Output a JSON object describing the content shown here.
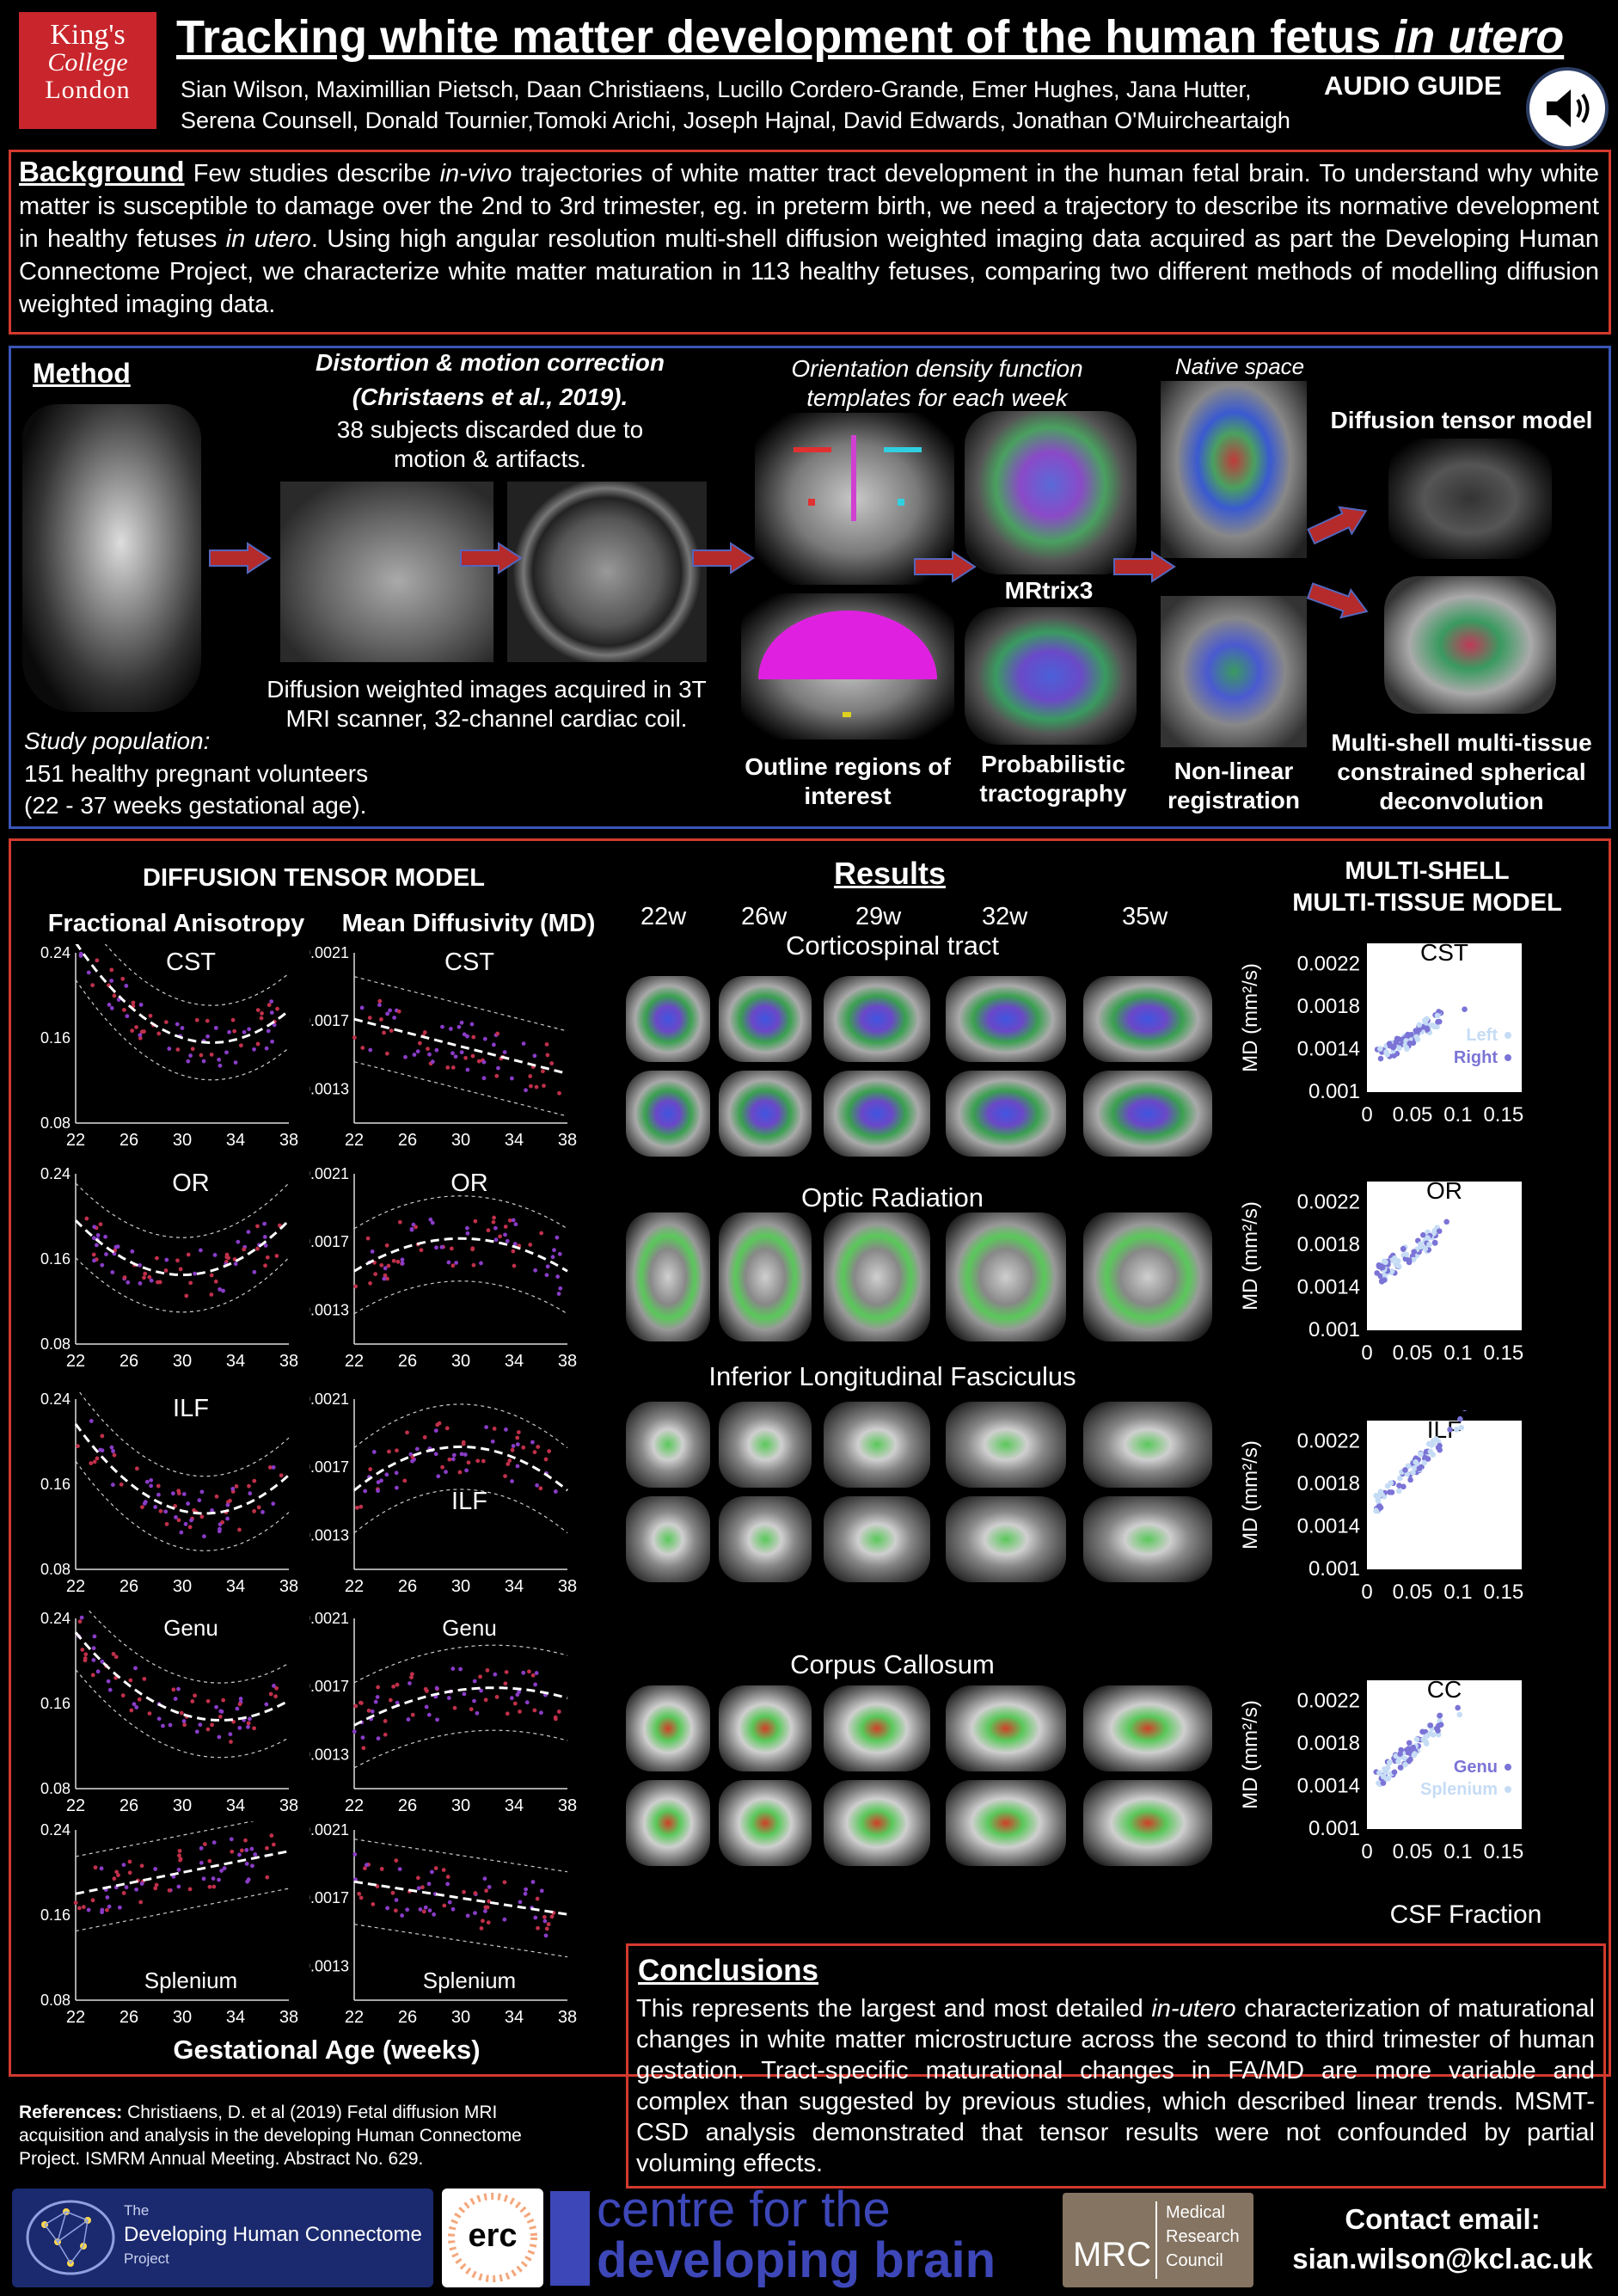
{
  "header": {
    "logo": {
      "line1": "King's",
      "line2": "College",
      "line3": "London"
    },
    "title_main": "Tracking white matter development of the human fetus ",
    "title_italic": "in utero",
    "authors_line1": "Sian Wilson, Maximillian Pietsch, Daan Christiaens, Lucillo Cordero-Grande, Emer Hughes, Jana Hutter,",
    "authors_line2": "Serena Counsell, Donald Tournier,Tomoki Arichi, Joseph Hajnal, David Edwards, Jonathan O'Muircheartaigh",
    "audio_guide": "AUDIO GUIDE"
  },
  "background": {
    "heading": "Background",
    "t1": " Few studies describe ",
    "t2": "in-vivo",
    "t3": " trajectories of white matter tract development in the human fetal brain. To understand why white matter is susceptible to damage over the 2nd to 3rd trimester, eg. in preterm birth, we need a trajectory to describe its normative development in healthy fetuses ",
    "t4": "in utero",
    "t5": ". Using high angular resolution multi-shell diffusion weighted imaging data acquired as part the Developing Human Connectome Project, we characterize white matter maturation in 113 healthy fetuses, comparing two different methods of modelling diffusion weighted imaging data."
  },
  "method": {
    "heading": "Method",
    "distortion_title": "Distortion & motion correction",
    "distortion_ref": "(Christaens et al., 2019).",
    "discarded": "38 subjects discarded due to motion & artifacts.",
    "dwi": "Diffusion weighted images acquired in 3T MRI scanner, 32-channel cardiac coil.",
    "study_pop_label": "Study population:",
    "study_pop_1": "151 healthy pregnant volunteers",
    "study_pop_2": "(22 - 37 weeks gestational age).",
    "odf": "Orientation density function templates for each week",
    "native": "Native space",
    "dtm": "Diffusion tensor model",
    "mrtrix": "MRtrix3",
    "outline": "Outline regions of interest",
    "prob": "Probabilistic tractography",
    "nonlin": "Non-linear registration",
    "msmt": "Multi-shell multi-tissue constrained spherical deconvolution"
  },
  "dtm_section": {
    "heading": "DIFFUSION TENSOR MODEL",
    "fa_header": "Fractional Anisotropy",
    "md_header": "Mean Diffusivity (MD)",
    "xlabel": "Gestational Age (weeks)",
    "x_ticks": [
      "22",
      "26",
      "30",
      "34",
      "38"
    ],
    "fa_ticks": [
      "0.24",
      "0.16",
      "0.08"
    ],
    "md_ticks": [
      "0.0021",
      "0.0017",
      "0.0013"
    ],
    "tract_labels": [
      "CST",
      "OR",
      "ILF",
      "Genu",
      "Splenium"
    ]
  },
  "results": {
    "heading": "Results",
    "weeks": [
      "22w",
      "26w",
      "29w",
      "32w",
      "35w"
    ],
    "tracts": [
      "Corticospinal tract",
      "Optic Radiation",
      "Inferior Longitudinal Fasciculus",
      "Corpus Callosum"
    ]
  },
  "msmt_section": {
    "heading1": "MULTI-SHELL",
    "heading2": "MULTI-TISSUE MODEL",
    "ylabel": "MD (mm²/s)",
    "xlabel": "CSF Fraction",
    "y_ticks": [
      "0.0022",
      "0.0018",
      "0.0014",
      "0.001"
    ],
    "x_ticks": [
      "0",
      "0.05",
      "0.1",
      "0.15"
    ],
    "panel_titles": [
      "CST",
      "OR",
      "ILF",
      "CC"
    ],
    "legend_cst": [
      "Left",
      "Right"
    ],
    "legend_cc": [
      "Genu",
      "Splenium"
    ]
  },
  "conclusions": {
    "heading": "Conclusions",
    "t1": "This represents the largest and most detailed ",
    "t2": "in-utero",
    "t3": " characterization of maturational changes in white matter microstructure across the second to third trimester of human gestation. Tract-specific maturational changes in FA/MD are more variable and complex than suggested by previous studies, which described linear trends. MSMT-CSD analysis demonstrated that tensor results were not confounded by partial voluming effects."
  },
  "references": {
    "label": "References:",
    "text": " Christiaens, D. et al (2019) Fetal diffusion MRI acquisition and analysis in the developing Human Connectome Project. ISMRM Annual Meeting. Abstract No. 629."
  },
  "footer": {
    "dhcp_the": "The",
    "dhcp_name": "Developing Human Connectome",
    "dhcp_project": "Project",
    "erc": "erc",
    "cdb1": "centre for the",
    "cdb2": "developing brain",
    "mrc": "MRC",
    "mrc_words": [
      "Medical",
      "Research",
      "Council"
    ],
    "contact_label": "Contact email:",
    "contact_email": "sian.wilson@kcl.ac.uk"
  },
  "colors": {
    "red_border": "#d33a2f",
    "blue_border": "#3a56b8",
    "arrow_fill": "#b52a2a",
    "scatter_purple": "#8a3cc8",
    "scatter_red": "#c0304a",
    "msmt_light": "#c6dcf5",
    "msmt_purple": "#7b74d6"
  }
}
